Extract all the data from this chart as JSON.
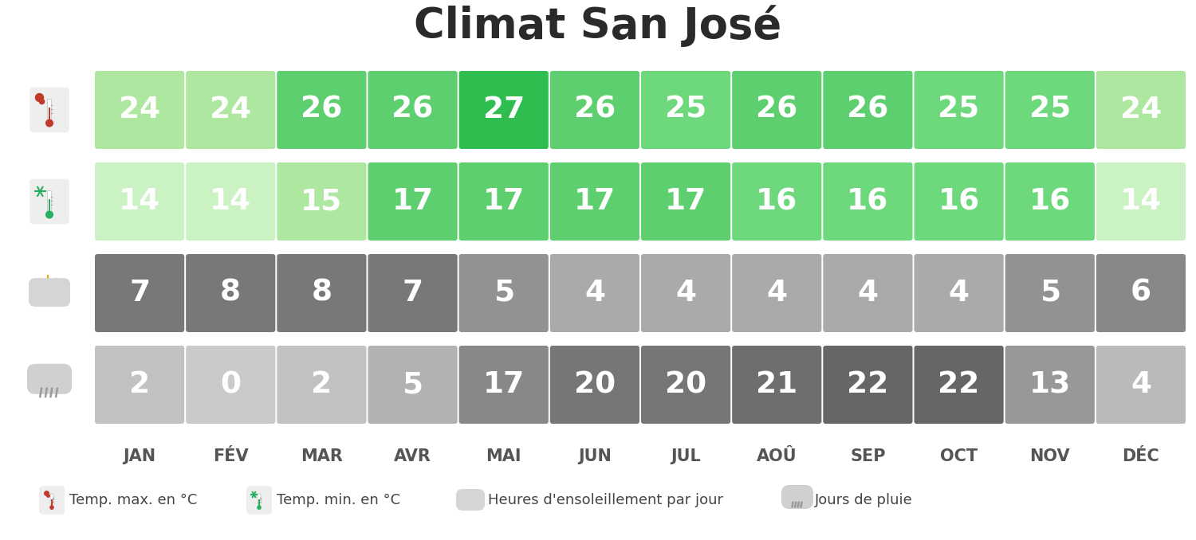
{
  "title": "Climat San José",
  "months": [
    "JAN",
    "FÉV",
    "MAR",
    "AVR",
    "MAI",
    "JUN",
    "JUL",
    "AOÛ",
    "SEP",
    "OCT",
    "NOV",
    "DÉC"
  ],
  "temp_max": [
    24,
    24,
    26,
    26,
    27,
    26,
    25,
    26,
    26,
    25,
    25,
    24
  ],
  "temp_min": [
    14,
    14,
    15,
    17,
    17,
    17,
    17,
    16,
    16,
    16,
    16,
    14
  ],
  "sunshine": [
    7,
    8,
    8,
    7,
    5,
    4,
    4,
    4,
    4,
    4,
    5,
    6
  ],
  "rain_days": [
    2,
    0,
    2,
    5,
    17,
    20,
    20,
    21,
    22,
    22,
    13,
    4
  ],
  "temp_max_colors": [
    "#aee8a0",
    "#aee8a0",
    "#5ecf6e",
    "#5ecf6e",
    "#2ebd4e",
    "#5ecf6e",
    "#6ed97c",
    "#5ecf6e",
    "#5ecf6e",
    "#6ed97c",
    "#6ed97c",
    "#aee8a0"
  ],
  "temp_min_colors": [
    "#caf2c2",
    "#caf2c2",
    "#aee8a0",
    "#5ecf6e",
    "#5ecf6e",
    "#5ecf6e",
    "#5ecf6e",
    "#6ed97c",
    "#6ed97c",
    "#6ed97c",
    "#6ed97c",
    "#caf2c2"
  ],
  "sunshine_colors": [
    "#787878",
    "#787878",
    "#787878",
    "#787878",
    "#929292",
    "#aaaaaa",
    "#aaaaaa",
    "#aaaaaa",
    "#aaaaaa",
    "#aaaaaa",
    "#929292",
    "#888888"
  ],
  "rain_colors": [
    "#c2c2c2",
    "#cacaca",
    "#c2c2c2",
    "#b2b2b2",
    "#888888",
    "#767676",
    "#767676",
    "#6e6e6e",
    "#666666",
    "#666666",
    "#989898",
    "#bababa"
  ],
  "background_color": "#ffffff",
  "header_text_color": "#555555",
  "cell_text_color": "#ffffff",
  "legend_text_color": "#444444",
  "title_color": "#2a2a2a",
  "row_labels": [
    "Temp. max. en °C",
    "Temp. min. en °C",
    "Heures d'ensoleillement par jour",
    "Jours de pluie"
  ]
}
